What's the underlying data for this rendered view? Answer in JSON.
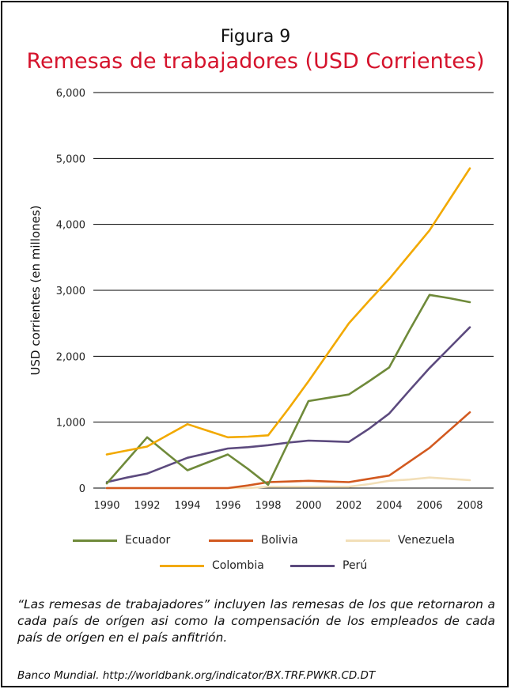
{
  "figure_label": "Figura 9",
  "title": "Remesas de trabajadores (USD Corrientes)",
  "note": "“Las remesas de trabajadores” incluyen las remesas de los que retornaron a cada país de orígen asi como la compensación de los empleados de cada país de orígen en el país anfitrión.",
  "source": "Banco Mundial. http://worldbank.org/indicator/BX.TRF.PWKR.CD.DT",
  "chart_data": {
    "type": "line",
    "title": "Remesas de trabajadores (USD Corrientes)",
    "xlabel": "",
    "ylabel": "USD corrientes (en millones)",
    "x": [
      1990,
      1991,
      1992,
      1993,
      1994,
      1995,
      1996,
      1997,
      1998,
      1999,
      2000,
      2001,
      2002,
      2003,
      2004,
      2005,
      2006,
      2007,
      2008
    ],
    "x_ticks": [
      "1990",
      "1992",
      "1994",
      "1996",
      "1998",
      "2000",
      "2002",
      "2004",
      "2006",
      "2008"
    ],
    "y_ticks": [
      "0",
      "1,000",
      "2,000",
      "3,000",
      "4,000",
      "5,000",
      "6,000"
    ],
    "ylim": [
      0,
      6000
    ],
    "grid": "horizontal",
    "legend_position": "bottom",
    "series": [
      {
        "name": "Ecuador",
        "color": "#6f8a3a",
        "values": [
          70,
          420,
          770,
          520,
          270,
          390,
          510,
          290,
          50,
          690,
          1320,
          1370,
          1420,
          1620,
          1830,
          2390,
          2930,
          2880,
          2820
        ]
      },
      {
        "name": "Bolivia",
        "color": "#d2591f",
        "values": [
          0,
          0,
          0,
          0,
          0,
          0,
          0,
          40,
          90,
          100,
          110,
          100,
          90,
          140,
          190,
          400,
          610,
          880,
          1150
        ]
      },
      {
        "name": "Venezuela",
        "color": "#f2dfb8",
        "values": [
          0,
          0,
          0,
          0,
          0,
          0,
          0,
          0,
          20,
          20,
          20,
          20,
          20,
          60,
          110,
          130,
          160,
          140,
          120
        ]
      },
      {
        "name": "Colombia",
        "color": "#f2a900",
        "values": [
          510,
          570,
          630,
          800,
          970,
          870,
          770,
          780,
          800,
          1200,
          1620,
          2060,
          2500,
          2840,
          3170,
          3540,
          3910,
          4380,
          4850
        ]
      },
      {
        "name": "Perú",
        "color": "#5c4a7e",
        "values": [
          90,
          160,
          220,
          340,
          460,
          530,
          600,
          620,
          650,
          690,
          720,
          710,
          700,
          900,
          1130,
          1480,
          1820,
          2130,
          2440
        ]
      }
    ]
  }
}
